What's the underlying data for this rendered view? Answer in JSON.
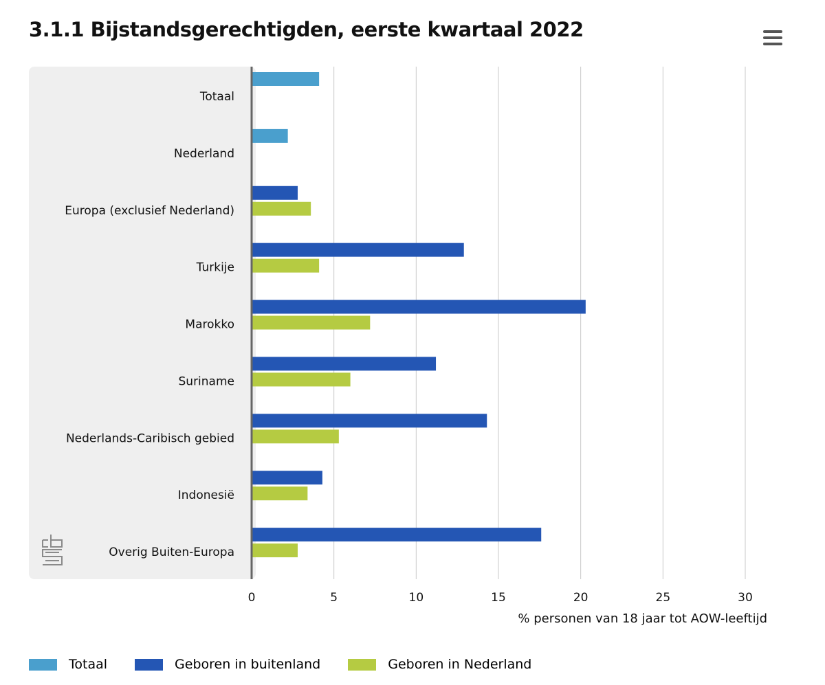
{
  "header": {
    "title": "3.1.1 Bijstandsgerechtigden, eerste kwartaal 2022",
    "menu_icon": "hamburger-menu-icon"
  },
  "logo": {
    "icon": "cbs-logo-icon"
  },
  "colors": {
    "totaal": "#4A9FCD",
    "buitenland": "#2456B4",
    "nederland": "#B5CB42",
    "panel": "#EFEFEF",
    "axis": "#666666",
    "grid": "#C8C8C8"
  },
  "chart_data": {
    "type": "bar",
    "orientation": "horizontal",
    "title": "3.1.1 Bijstandsgerechtigden, eerste kwartaal 2022",
    "xlabel": "% personen van 18 jaar tot AOW-leeftijd",
    "ylabel": "",
    "xlim": [
      0,
      30
    ],
    "xticks": [
      "0",
      "5",
      "10",
      "15",
      "20",
      "25",
      "30"
    ],
    "grid": true,
    "legend_position": "bottom-left",
    "categories": [
      "Totaal",
      "Nederland",
      "Europa (exclusief Nederland)",
      "Turkije",
      "Marokko",
      "Suriname",
      "Nederlands-Caribisch gebied",
      "Indonesië",
      "Overig Buiten-Europa"
    ],
    "series": [
      {
        "name": "Totaal",
        "color": "#4A9FCD",
        "values": [
          4.1,
          2.2,
          null,
          null,
          null,
          null,
          null,
          null,
          null
        ]
      },
      {
        "name": "Geboren in buitenland",
        "color": "#2456B4",
        "values": [
          null,
          null,
          2.8,
          12.9,
          20.3,
          11.2,
          14.3,
          4.3,
          17.6
        ]
      },
      {
        "name": "Geboren in Nederland",
        "color": "#B5CB42",
        "values": [
          null,
          null,
          3.6,
          4.1,
          7.2,
          6.0,
          5.3,
          3.4,
          2.8
        ]
      }
    ]
  }
}
